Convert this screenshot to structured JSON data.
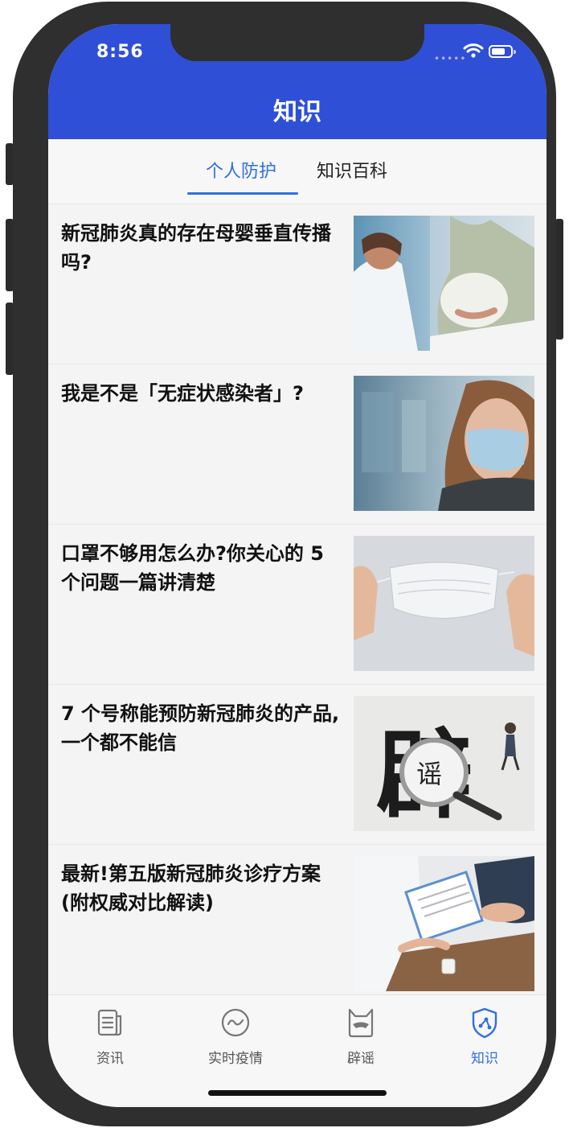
{
  "status_bar": {
    "time": "8:56"
  },
  "header": {
    "title": "知识"
  },
  "tabs": [
    {
      "label": "个人防护",
      "active": true
    },
    {
      "label": "知识百科",
      "active": false
    }
  ],
  "articles": [
    {
      "title": "新冠肺炎真的存在母婴垂直传播吗?",
      "image": "doctor-and-pregnant-woman-photo"
    },
    {
      "title": "我是不是「无症状感染者」?",
      "image": "woman-wearing-mask-photo"
    },
    {
      "title": "口罩不够用怎么办?你关心的 5 个问题一篇讲清楚",
      "image": "hands-holding-mask-photo"
    },
    {
      "title": "7 个号称能预防新冠肺炎的产品,一个都不能信",
      "image": "rumor-magnifier-photo"
    },
    {
      "title": "最新!第五版新冠肺炎诊疗方案(附权威对比解读)",
      "image": "doctor-clipboard-photo"
    }
  ],
  "bottom_nav": [
    {
      "label": "资讯",
      "icon": "news-icon",
      "active": false
    },
    {
      "label": "实时疫情",
      "icon": "pulse-icon",
      "active": false
    },
    {
      "label": "辟谣",
      "icon": "rumor-icon",
      "active": false
    },
    {
      "label": "知识",
      "icon": "shield-icon",
      "active": true
    }
  ],
  "colors": {
    "primary": "#2f4fd6",
    "active": "#2f6fe0"
  }
}
